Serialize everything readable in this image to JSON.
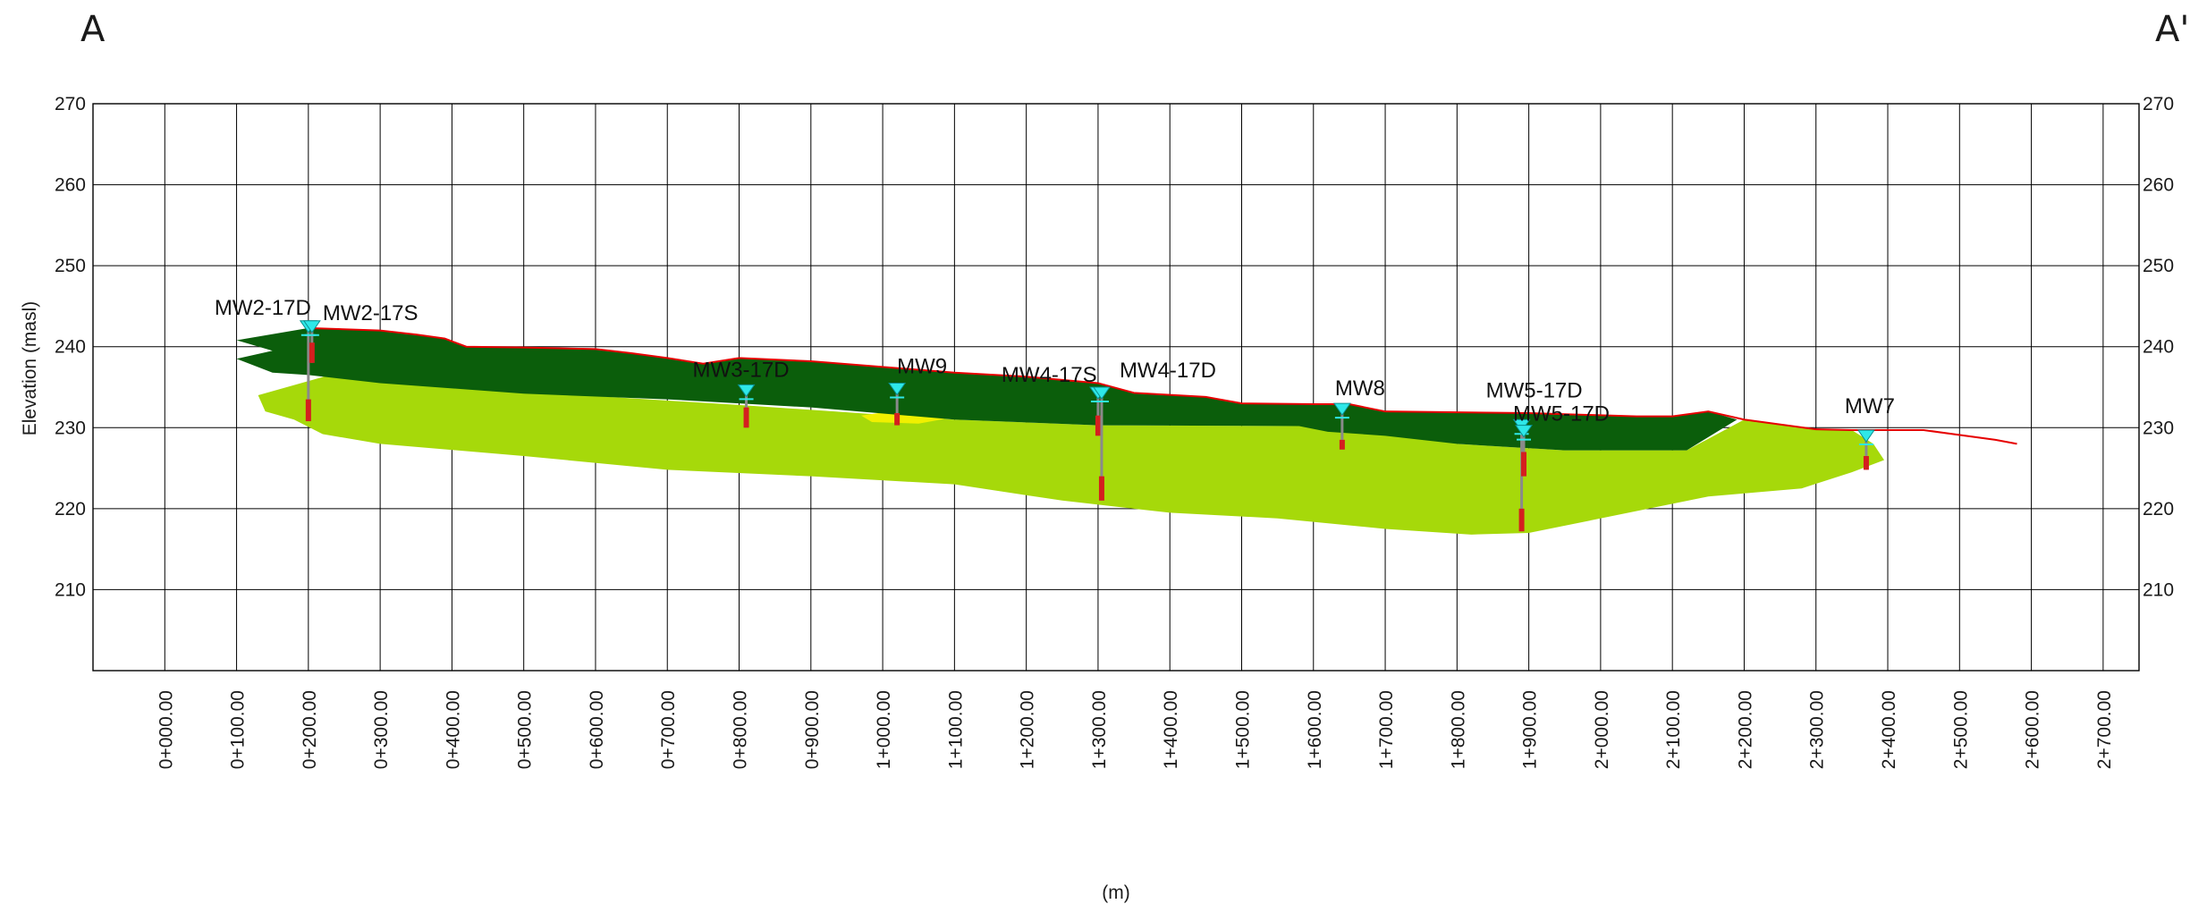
{
  "section": {
    "start_label": "A",
    "end_label": "A'"
  },
  "chart_data": {
    "type": "cross-section",
    "title": "",
    "xlabel": "(m)",
    "ylabel": "Elevation (masl)",
    "xlim": [
      -100,
      2750
    ],
    "ylim": [
      200,
      270
    ],
    "x_ticks": [
      0,
      100,
      200,
      300,
      400,
      500,
      600,
      700,
      800,
      900,
      1000,
      1100,
      1200,
      1300,
      1400,
      1500,
      1600,
      1700,
      1800,
      1900,
      2000,
      2100,
      2200,
      2300,
      2400,
      2500,
      2600,
      2700
    ],
    "x_tick_labels": [
      "0+000.00",
      "0+100.00",
      "0+200.00",
      "0+300.00",
      "0+400.00",
      "0+500.00",
      "0+600.00",
      "0+700.00",
      "0+800.00",
      "0+900.00",
      "1+000.00",
      "1+100.00",
      "1+200.00",
      "1+300.00",
      "1+400.00",
      "1+500.00",
      "1+600.00",
      "1+700.00",
      "1+800.00",
      "1+900.00",
      "2+000.00",
      "2+100.00",
      "2+200.00",
      "2+300.00",
      "2+400.00",
      "2+500.00",
      "2+600.00",
      "2+700.00"
    ],
    "y_ticks": [
      210,
      220,
      230,
      240,
      250,
      260,
      270
    ],
    "y_tick_labels": [
      "210",
      "220",
      "230",
      "240",
      "250",
      "260",
      "270"
    ],
    "grid": true,
    "colors": {
      "ground_surface": "#e60000",
      "upper_layer": "#0b5e0b",
      "lower_layer": "#a6d90a",
      "sand_lens": "#f0f000",
      "water_level": "#2ee8e8",
      "screen": "#d41f1f",
      "casing": "#8a8a8a",
      "grid": "#000000"
    },
    "ground_surface": [
      [
        200,
        242.3
      ],
      [
        300,
        242
      ],
      [
        350,
        241.5
      ],
      [
        390,
        241
      ],
      [
        420,
        240
      ],
      [
        500,
        239.9
      ],
      [
        600,
        239.7
      ],
      [
        650,
        239.2
      ],
      [
        700,
        238.6
      ],
      [
        750,
        237.9
      ],
      [
        800,
        238.6
      ],
      [
        900,
        238.2
      ],
      [
        1000,
        237.5
      ],
      [
        1100,
        236.8
      ],
      [
        1200,
        236.3
      ],
      [
        1300,
        235.5
      ],
      [
        1350,
        234.3
      ],
      [
        1450,
        233.8
      ],
      [
        1500,
        233
      ],
      [
        1600,
        232.9
      ],
      [
        1650,
        232.9
      ],
      [
        1700,
        232
      ],
      [
        1900,
        231.8
      ],
      [
        2050,
        231.4
      ],
      [
        2100,
        231.4
      ],
      [
        2150,
        232
      ],
      [
        2200,
        231
      ],
      [
        2300,
        229.8
      ],
      [
        2350,
        229.7
      ],
      [
        2450,
        229.7
      ],
      [
        2550,
        228.5
      ],
      [
        2580,
        228
      ]
    ],
    "upper_layer": [
      [
        100,
        240.8
      ],
      [
        200,
        242.3
      ],
      [
        300,
        242
      ],
      [
        350,
        241.5
      ],
      [
        390,
        241
      ],
      [
        420,
        240
      ],
      [
        500,
        239.9
      ],
      [
        600,
        239.7
      ],
      [
        650,
        239.2
      ],
      [
        700,
        238.6
      ],
      [
        750,
        237.9
      ],
      [
        800,
        238.6
      ],
      [
        900,
        238.2
      ],
      [
        1000,
        237.5
      ],
      [
        1100,
        236.8
      ],
      [
        1200,
        236.3
      ],
      [
        1300,
        235.5
      ],
      [
        1350,
        234.3
      ],
      [
        1450,
        233.8
      ],
      [
        1500,
        233
      ],
      [
        1600,
        232.9
      ],
      [
        1650,
        232.9
      ],
      [
        1700,
        232
      ],
      [
        1900,
        231.8
      ],
      [
        2050,
        231.4
      ],
      [
        2100,
        231.4
      ],
      [
        2150,
        232
      ],
      [
        2190,
        231
      ],
      [
        2120,
        227.2
      ],
      [
        1950,
        227.2
      ],
      [
        1800,
        228
      ],
      [
        1700,
        229
      ],
      [
        1620,
        229.5
      ],
      [
        1580,
        230.2
      ],
      [
        1300,
        230.3
      ],
      [
        1100,
        231
      ],
      [
        900,
        232.5
      ],
      [
        700,
        233.5
      ],
      [
        500,
        234.2
      ],
      [
        300,
        235.5
      ],
      [
        200,
        236.5
      ],
      [
        150,
        236.8
      ],
      [
        100,
        238.5
      ],
      [
        150,
        239.5
      ]
    ],
    "lower_layer": [
      [
        130,
        234
      ],
      [
        230,
        236.5
      ],
      [
        400,
        235
      ],
      [
        800,
        232.8
      ],
      [
        1100,
        231
      ],
      [
        1300,
        230.3
      ],
      [
        1580,
        230.2
      ],
      [
        1630,
        231.2
      ],
      [
        1700,
        230
      ],
      [
        1800,
        228
      ],
      [
        1950,
        227.2
      ],
      [
        2120,
        227.2
      ],
      [
        2200,
        231
      ],
      [
        2300,
        229.8
      ],
      [
        2350,
        229.7
      ],
      [
        2380,
        228
      ],
      [
        2395,
        226
      ],
      [
        2350,
        224.5
      ],
      [
        2280,
        222.5
      ],
      [
        2150,
        221.5
      ],
      [
        1900,
        217
      ],
      [
        1820,
        216.8
      ],
      [
        1700,
        217.5
      ],
      [
        1550,
        218.8
      ],
      [
        1400,
        219.5
      ],
      [
        1250,
        221
      ],
      [
        1100,
        223
      ],
      [
        900,
        224
      ],
      [
        700,
        224.8
      ],
      [
        500,
        226.5
      ],
      [
        300,
        228
      ],
      [
        220,
        229.2
      ],
      [
        180,
        231
      ],
      [
        140,
        232
      ]
    ],
    "sand_lens": [
      [
        970,
        231.5
      ],
      [
        1010,
        232
      ],
      [
        1100,
        231.3
      ],
      [
        1050,
        230.5
      ],
      [
        985,
        230.7
      ]
    ],
    "wells": [
      {
        "name": "MW2-17D",
        "x": 200,
        "water_level": 242.2,
        "screen_top": 233.5,
        "screen_bottom": 230.8,
        "bottom": 230.8
      },
      {
        "name": "MW2-17S",
        "x": 205,
        "water_level": 242.2,
        "screen_top": 240.5,
        "screen_bottom": 238.0,
        "bottom": 238.0
      },
      {
        "name": "MW3-17D",
        "x": 810,
        "water_level": 234.3,
        "screen_top": 232.5,
        "screen_bottom": 230.0,
        "bottom": 230.0
      },
      {
        "name": "MW9",
        "x": 1020,
        "water_level": 234.5,
        "screen_top": 231.8,
        "screen_bottom": 230.3,
        "bottom": 230.3
      },
      {
        "name": "MW4-17S",
        "x": 1300,
        "water_level": 234.0,
        "screen_top": 231.5,
        "screen_bottom": 229.0,
        "bottom": 229.0
      },
      {
        "name": "MW4-17D",
        "x": 1305,
        "water_level": 234.0,
        "screen_top": 224.0,
        "screen_bottom": 221.0,
        "bottom": 221.0
      },
      {
        "name": "MW8",
        "x": 1640,
        "water_level": 232.0,
        "screen_top": 228.5,
        "screen_bottom": 227.3,
        "bottom": 227.3
      },
      {
        "name": "MW5-17D",
        "x": 1890,
        "water_level": 230.0,
        "screen_top": 220.0,
        "screen_bottom": 217.2,
        "bottom": 217.2
      },
      {
        "name": "MW5-17D",
        "x": 1893,
        "water_level": 229.3,
        "screen_top": 227.0,
        "screen_bottom": 224.0,
        "bottom": 224.0
      },
      {
        "name": "MW7",
        "x": 2370,
        "water_level": 228.7,
        "screen_top": 226.5,
        "screen_bottom": 224.8,
        "bottom": 224.8
      }
    ]
  }
}
